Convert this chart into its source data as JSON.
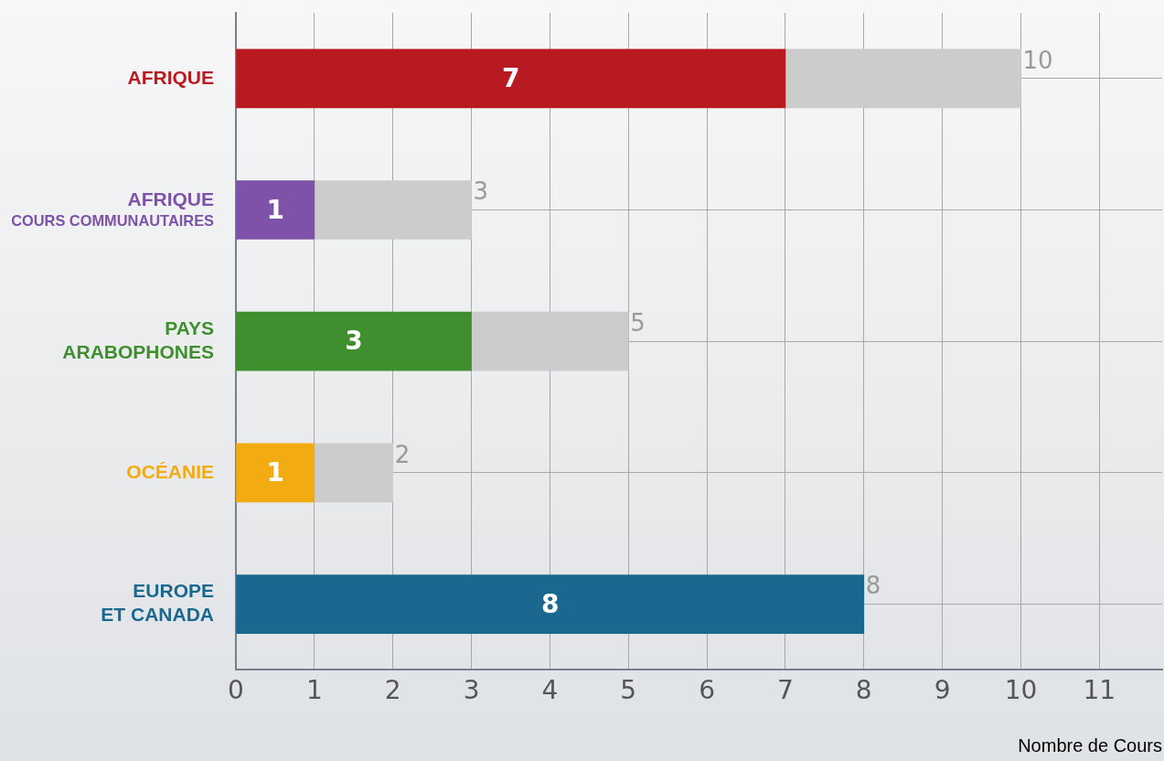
{
  "chart_data": {
    "type": "bar",
    "orientation": "horizontal",
    "stacked": true,
    "categories": [
      "AFRIQUE",
      "AFRIQUE\nCOURS COMMUNAUTAIRES",
      "PAYS\nARABOPHONES",
      "OCÉANIE",
      "EUROPE\nET CANADA"
    ],
    "series": [
      {
        "colors": [
          "#b81a22",
          "#7d52a8",
          "#3f8f2e",
          "#f3ab12",
          "#1a6890"
        ],
        "values": [
          7,
          1,
          3,
          1,
          8
        ],
        "value_labels": [
          "7",
          "1",
          "3",
          "1",
          "8"
        ]
      },
      {
        "color": "#cccccc",
        "values": [
          3,
          2,
          2,
          1,
          0
        ]
      }
    ],
    "totals": [
      "10",
      "3",
      "5",
      "2",
      "8"
    ],
    "xlabel": "Nombre de Cours",
    "xlim": [
      0,
      11.8
    ],
    "xticks": [
      0,
      1,
      2,
      3,
      4,
      5,
      6,
      7,
      8,
      9,
      10,
      11
    ],
    "grid": true,
    "legend": false
  }
}
